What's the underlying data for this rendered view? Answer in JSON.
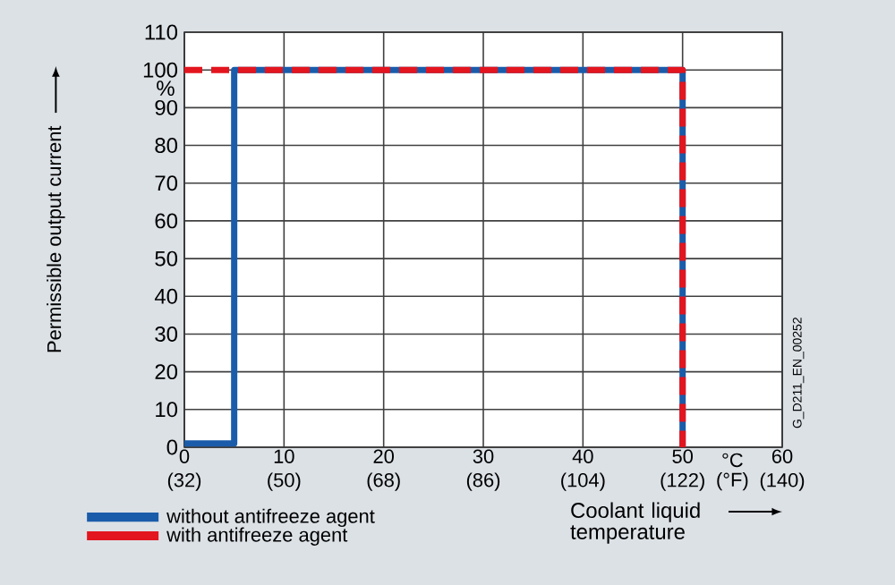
{
  "chart_data": {
    "type": "line",
    "xlabel": "Coolant liquid temperature",
    "ylabel": "Permissible output current",
    "xlim": [
      0,
      60
    ],
    "ylim": [
      0,
      110
    ],
    "xticks": [
      0,
      10,
      20,
      30,
      40,
      50,
      60
    ],
    "x2lim": [
      32,
      140
    ],
    "x2ticks": [
      {
        "value": 32,
        "label": "(32)"
      },
      {
        "value": 50,
        "label": "(50)"
      },
      {
        "value": 68,
        "label": "(68)"
      },
      {
        "value": 86,
        "label": "(86)"
      },
      {
        "value": 104,
        "label": "(104)"
      },
      {
        "value": 122,
        "label": "(122)"
      },
      {
        "value": 140,
        "label": "(140)"
      }
    ],
    "yticks": [
      0,
      10,
      20,
      30,
      40,
      50,
      60,
      70,
      80,
      90,
      100,
      110
    ],
    "grid": true,
    "legend": "bottom",
    "marker": "none",
    "annotations": [
      "%",
      "°C (°F)",
      "G_D211_EN_00252"
    ],
    "series": [
      {
        "name": "without antifreeze agent",
        "color": "#1a5caa",
        "x": [
          0,
          5,
          5,
          50,
          50
        ],
        "values": [
          1,
          1,
          100,
          100,
          0
        ],
        "line_style": "solid"
      },
      {
        "name": "with  antifreeze agent",
        "color": "#e3151e",
        "x": [
          0,
          50,
          50
        ],
        "values": [
          100,
          100,
          0
        ],
        "line_style": "dashed"
      }
    ]
  }
}
